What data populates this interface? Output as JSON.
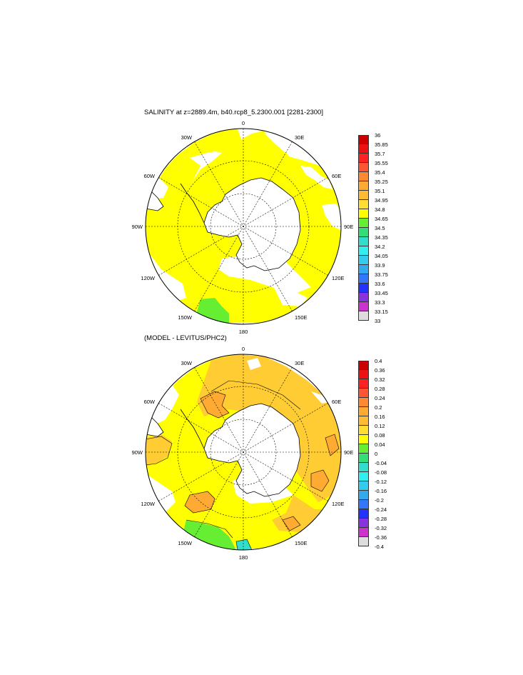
{
  "colors": {
    "yellow": "#ffff00",
    "light_orange": "#ffcc33",
    "orange": "#ffaa33",
    "green": "#66ee33",
    "teal": "#33cccc",
    "coast": "#000000"
  },
  "panels": [
    {
      "title": "SALINITY at z=2889.4m, b40.rcp8_5.2300.001 [2281-2300]",
      "lon_labels": {
        "top": "0",
        "bottom": "180",
        "left": "90W",
        "right": "90E",
        "w30": "30W",
        "w60": "60W",
        "w120": "120W",
        "w150": "150W",
        "e30": "30E",
        "e60": "60E",
        "e120": "120E",
        "e150": "150E"
      },
      "colorbar": {
        "colors": [
          "#cc0000",
          "#ee1111",
          "#ff2222",
          "#ff5533",
          "#ff8833",
          "#ffaa33",
          "#ffbb33",
          "#ffdd33",
          "#ffff00",
          "#66ee33",
          "#33dd77",
          "#33ddcc",
          "#33eeee",
          "#33ccee",
          "#33aaee",
          "#3377ff",
          "#2233ff",
          "#8833dd",
          "#cc33cc",
          "#dddddd",
          "#777777"
        ],
        "ticks": [
          "36",
          "35.85",
          "35.7",
          "35.55",
          "35.4",
          "35.25",
          "35.1",
          "34.95",
          "34.8",
          "34.65",
          "34.5",
          "34.35",
          "34.2",
          "34.05",
          "33.9",
          "33.75",
          "33.6",
          "33.45",
          "33.3",
          "33.15",
          "33"
        ]
      }
    },
    {
      "title": "(MODEL - LEVITUS/PHC2)",
      "lon_labels": {
        "top": "0",
        "bottom": "180",
        "left": "90W",
        "right": "90E",
        "w30": "30W",
        "w60": "60W",
        "w120": "120W",
        "w150": "150W",
        "e30": "30E",
        "e60": "60E",
        "e120": "120E",
        "e150": "150E"
      },
      "colorbar": {
        "colors": [
          "#cc0000",
          "#ee1111",
          "#ff2222",
          "#ff5533",
          "#ff8833",
          "#ffaa33",
          "#ffbb33",
          "#ffdd33",
          "#ffff00",
          "#66ee33",
          "#33dd77",
          "#33ddcc",
          "#33eeee",
          "#33ccee",
          "#33aaee",
          "#3377ff",
          "#2233ff",
          "#8833dd",
          "#cc33cc",
          "#dddddd",
          "#777777"
        ],
        "ticks": [
          "0.4",
          "0.36",
          "0.32",
          "0.28",
          "0.24",
          "0.2",
          "0.16",
          "0.12",
          "0.08",
          "0.04",
          "0",
          "-0.04",
          "-0.08",
          "-0.12",
          "-0.16",
          "-0.2",
          "-0.24",
          "-0.28",
          "-0.32",
          "-0.36",
          "-0.4"
        ]
      }
    }
  ]
}
